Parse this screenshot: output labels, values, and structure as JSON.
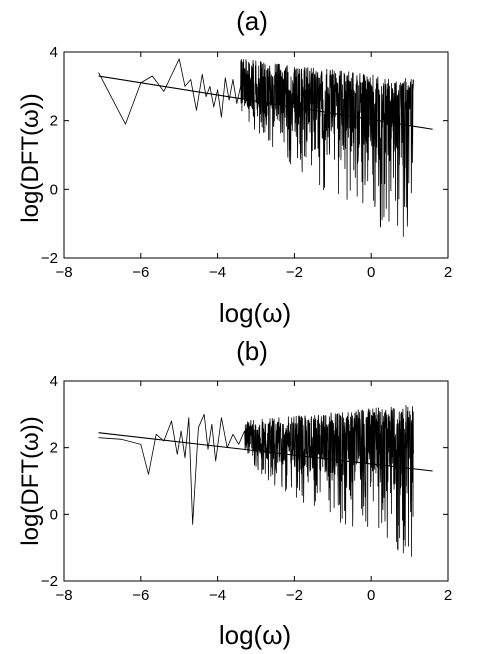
{
  "chart_data": [
    {
      "type": "line",
      "title": "(a)",
      "xlabel": "log(ω)",
      "ylabel": "log(DFT(ω))",
      "xlim": [
        -8,
        2
      ],
      "ylim": [
        -2,
        4
      ],
      "xticks": [
        -8,
        -6,
        -4,
        -2,
        0,
        2
      ],
      "yticks": [
        -2,
        0,
        2,
        4
      ],
      "grid": false,
      "legend": "none",
      "series": [
        {
          "role": "spectrum",
          "low_frequency_points": [
            {
              "x": -7.1,
              "y": 3.4
            },
            {
              "x": -6.4,
              "y": 1.9
            },
            {
              "x": -6.0,
              "y": 3.1
            },
            {
              "x": -5.7,
              "y": 3.3
            },
            {
              "x": -5.4,
              "y": 2.85
            },
            {
              "x": -5.0,
              "y": 3.8
            },
            {
              "x": -4.85,
              "y": 3.0
            },
            {
              "x": -4.7,
              "y": 3.2
            },
            {
              "x": -4.55,
              "y": 2.3
            },
            {
              "x": -4.4,
              "y": 3.35
            },
            {
              "x": -4.3,
              "y": 2.7
            },
            {
              "x": -4.2,
              "y": 3.0
            },
            {
              "x": -4.1,
              "y": 2.4
            },
            {
              "x": -4.0,
              "y": 2.9
            },
            {
              "x": -3.9,
              "y": 2.1
            },
            {
              "x": -3.8,
              "y": 3.25
            },
            {
              "x": -3.7,
              "y": 2.6
            },
            {
              "x": -3.6,
              "y": 3.2
            },
            {
              "x": -3.5,
              "y": 2.5
            },
            {
              "x": -3.4,
              "y": 3.0
            }
          ],
          "noise_band": {
            "x_range": [
              -3.4,
              1.1
            ],
            "upper_start": 3.8,
            "upper_end": 3.2,
            "center_start": 2.75,
            "center_end": 2.15,
            "min_start": 2.2,
            "min_end": -1.9
          }
        },
        {
          "role": "linear fit",
          "x": [
            -7.1,
            1.6
          ],
          "y": [
            3.3,
            1.75
          ]
        }
      ]
    },
    {
      "type": "line",
      "title": "(b)",
      "xlabel": "log(ω)",
      "ylabel": "log(DFT(ω))",
      "xlim": [
        -8,
        2
      ],
      "ylim": [
        -2,
        4
      ],
      "xticks": [
        -8,
        -6,
        -4,
        -2,
        0,
        2
      ],
      "yticks": [
        -2,
        0,
        2,
        4
      ],
      "grid": false,
      "legend": "none",
      "series": [
        {
          "role": "spectrum",
          "low_frequency_points": [
            {
              "x": -7.1,
              "y": 2.3
            },
            {
              "x": -6.5,
              "y": 2.25
            },
            {
              "x": -6.0,
              "y": 2.1
            },
            {
              "x": -5.8,
              "y": 1.2
            },
            {
              "x": -5.6,
              "y": 2.4
            },
            {
              "x": -5.4,
              "y": 2.2
            },
            {
              "x": -5.2,
              "y": 2.8
            },
            {
              "x": -5.05,
              "y": 1.8
            },
            {
              "x": -4.95,
              "y": 2.5
            },
            {
              "x": -4.85,
              "y": 1.7
            },
            {
              "x": -4.75,
              "y": 2.9
            },
            {
              "x": -4.65,
              "y": -0.3
            },
            {
              "x": -4.5,
              "y": 2.6
            },
            {
              "x": -4.35,
              "y": 3.0
            },
            {
              "x": -4.25,
              "y": 1.95
            },
            {
              "x": -4.15,
              "y": 2.7
            },
            {
              "x": -4.05,
              "y": 1.6
            },
            {
              "x": -3.9,
              "y": 2.9
            },
            {
              "x": -3.75,
              "y": 2.0
            },
            {
              "x": -3.6,
              "y": 2.4
            },
            {
              "x": -3.45,
              "y": 2.1
            },
            {
              "x": -3.3,
              "y": 2.5
            }
          ],
          "noise_band": {
            "x_range": [
              -3.3,
              1.1
            ],
            "upper_start": 2.8,
            "upper_end": 3.3,
            "center_start": 2.15,
            "center_end": 2.0,
            "min_start": 1.6,
            "min_end": -1.3
          }
        },
        {
          "role": "linear fit",
          "x": [
            -7.1,
            1.6
          ],
          "y": [
            2.45,
            1.3
          ]
        }
      ]
    }
  ]
}
